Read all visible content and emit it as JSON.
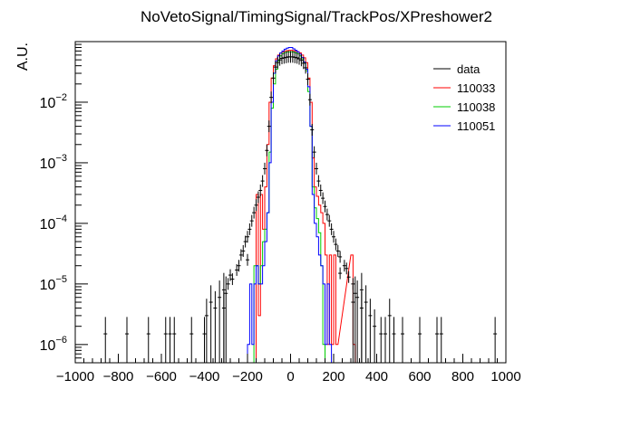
{
  "chart_data": {
    "type": "histogram",
    "title": "NoVetoSignal/TimingSignal/TrackPos/XPreshower2",
    "ylabel": "A.U.",
    "xlabel": "",
    "xlim": [
      -1000,
      1000
    ],
    "ylim": [
      5e-07,
      0.1
    ],
    "yscale": "log",
    "xticks": [
      "−1000",
      "−800",
      "−600",
      "−400",
      "−200",
      "0",
      "200",
      "400",
      "600",
      "800",
      "1000"
    ],
    "yticks": [
      {
        "base": "10",
        "exp": "−6",
        "value": 1e-06
      },
      {
        "base": "10",
        "exp": "−5",
        "value": 1e-05
      },
      {
        "base": "10",
        "exp": "−4",
        "value": 0.0001
      },
      {
        "base": "10",
        "exp": "−3",
        "value": 0.001
      },
      {
        "base": "10",
        "exp": "−2",
        "value": 0.01
      }
    ],
    "legend_position": "top-right",
    "data": {
      "name": "data",
      "color": "#000000",
      "points": [
        [
          -860,
          1.5e-06
        ],
        [
          -760,
          1.5e-06
        ],
        [
          -660,
          1.5e-06
        ],
        [
          -580,
          1.5e-06
        ],
        [
          -560,
          1.5e-06
        ],
        [
          -540,
          1.5e-06
        ],
        [
          -460,
          1.5e-06
        ],
        [
          -400,
          1.5e-06
        ],
        [
          -390,
          3e-06
        ],
        [
          -370,
          5e-06
        ],
        [
          -350,
          4e-06
        ],
        [
          -330,
          6e-06
        ],
        [
          -310,
          8e-06
        ],
        [
          -290,
          1e-05
        ],
        [
          -280,
          1.4e-05
        ],
        [
          -270,
          1.2e-05
        ],
        [
          -250,
          1.7e-05
        ],
        [
          -240,
          2e-05
        ],
        [
          -230,
          3e-05
        ],
        [
          -220,
          3.5e-05
        ],
        [
          -210,
          5e-05
        ],
        [
          -200,
          6e-05
        ],
        [
          -190,
          8e-05
        ],
        [
          -180,
          0.00011
        ],
        [
          -170,
          0.00015
        ],
        [
          -160,
          0.0002
        ],
        [
          -150,
          0.00027
        ],
        [
          -140,
          0.00035
        ],
        [
          -130,
          0.0005
        ],
        [
          -120,
          0.0008
        ],
        [
          -110,
          0.0016
        ],
        [
          -100,
          0.004
        ],
        [
          -90,
          0.012
        ],
        [
          -80,
          0.025
        ],
        [
          -70,
          0.038
        ],
        [
          -60,
          0.045
        ],
        [
          -50,
          0.05
        ],
        [
          -40,
          0.053
        ],
        [
          -30,
          0.054
        ],
        [
          -20,
          0.055
        ],
        [
          -10,
          0.056
        ],
        [
          0,
          0.056
        ],
        [
          10,
          0.056
        ],
        [
          20,
          0.055
        ],
        [
          30,
          0.054
        ],
        [
          40,
          0.052
        ],
        [
          50,
          0.049
        ],
        [
          60,
          0.044
        ],
        [
          70,
          0.037
        ],
        [
          80,
          0.024
        ],
        [
          90,
          0.011
        ],
        [
          100,
          0.0035
        ],
        [
          110,
          0.0015
        ],
        [
          120,
          0.0008
        ],
        [
          130,
          0.0005
        ],
        [
          140,
          0.00035
        ],
        [
          150,
          0.00026
        ],
        [
          160,
          0.00019
        ],
        [
          170,
          0.00014
        ],
        [
          180,
          0.00011
        ],
        [
          190,
          8e-05
        ],
        [
          200,
          6e-05
        ],
        [
          210,
          4.5e-05
        ],
        [
          220,
          3.5e-05
        ],
        [
          230,
          2.8e-05
        ],
        [
          250,
          2e-05
        ],
        [
          260,
          1.8e-05
        ],
        [
          270,
          1.3e-05
        ],
        [
          290,
          1e-05
        ],
        [
          300,
          7e-06
        ],
        [
          310,
          6e-06
        ],
        [
          330,
          4e-06
        ],
        [
          350,
          5e-06
        ],
        [
          370,
          3e-06
        ],
        [
          390,
          2e-06
        ],
        [
          420,
          1.5e-06
        ],
        [
          440,
          1.5e-06
        ],
        [
          460,
          3e-06
        ],
        [
          480,
          1.5e-06
        ],
        [
          520,
          1.5e-06
        ],
        [
          600,
          1.5e-06
        ],
        [
          680,
          1.5e-06
        ],
        [
          700,
          1.5e-06
        ],
        [
          950,
          1.5e-06
        ],
        [
          -300,
          7e-06
        ],
        [
          -200,
          2.5e-05
        ],
        [
          230,
          1.5e-05
        ],
        [
          290,
          5e-06
        ],
        [
          -310,
          4e-06
        ],
        [
          330,
          8e-06
        ]
      ]
    },
    "series": [
      {
        "name": "110033",
        "color": "#ff0000",
        "bins": [
          [
            -160,
            -150,
            0.0003
          ],
          [
            -150,
            -140,
            3e-06
          ],
          [
            -140,
            -130,
            0.0003
          ],
          [
            -130,
            -120,
            8e-05
          ],
          [
            -120,
            -110,
            0.0004
          ],
          [
            -110,
            -100,
            0.002
          ],
          [
            -100,
            -90,
            0.01
          ],
          [
            -90,
            -80,
            0.025
          ],
          [
            -80,
            -70,
            0.04
          ],
          [
            -70,
            -60,
            0.052
          ],
          [
            -60,
            -50,
            0.06
          ],
          [
            -50,
            -40,
            0.065
          ],
          [
            -40,
            -30,
            0.068
          ],
          [
            -30,
            -20,
            0.07
          ],
          [
            -20,
            -10,
            0.071
          ],
          [
            -10,
            0,
            0.072
          ],
          [
            0,
            10,
            0.072
          ],
          [
            10,
            20,
            0.071
          ],
          [
            20,
            30,
            0.07
          ],
          [
            30,
            40,
            0.068
          ],
          [
            40,
            50,
            0.065
          ],
          [
            50,
            60,
            0.06
          ],
          [
            60,
            70,
            0.054
          ],
          [
            70,
            80,
            0.045
          ],
          [
            80,
            90,
            0.025
          ],
          [
            90,
            100,
            0.01
          ],
          [
            100,
            110,
            0.0012
          ],
          [
            110,
            120,
            0.0004
          ],
          [
            120,
            130,
            0.00028
          ],
          [
            130,
            140,
            0.0002
          ],
          [
            140,
            150,
            0.00015
          ],
          [
            150,
            160,
            0.0001
          ],
          [
            160,
            170,
            3e-05
          ],
          [
            170,
            180,
            1e-06
          ],
          [
            180,
            190,
            3e-05
          ],
          [
            190,
            200,
            1e-06
          ],
          [
            200,
            210,
            3e-05
          ],
          [
            210,
            220,
            1e-06
          ],
          [
            280,
            290,
            3e-05
          ],
          [
            290,
            300,
            1e-06
          ]
        ]
      },
      {
        "name": "110038",
        "color": "#00cc00",
        "bins": [
          [
            -170,
            -160,
            2e-05
          ],
          [
            -160,
            -150,
            2e-05
          ],
          [
            -150,
            -140,
            1e-05
          ],
          [
            -140,
            -130,
            2e-05
          ],
          [
            -130,
            -120,
            5e-05
          ],
          [
            -120,
            -110,
            8e-05
          ],
          [
            -110,
            -100,
            0.00015
          ],
          [
            -100,
            -90,
            0.0015
          ],
          [
            -90,
            -80,
            0.008
          ],
          [
            -80,
            -70,
            0.02
          ],
          [
            -70,
            -60,
            0.035
          ],
          [
            -60,
            -50,
            0.048
          ],
          [
            -50,
            -40,
            0.058
          ],
          [
            -40,
            -30,
            0.063
          ],
          [
            -30,
            -20,
            0.066
          ],
          [
            -20,
            -10,
            0.068
          ],
          [
            -10,
            0,
            0.068
          ],
          [
            0,
            10,
            0.068
          ],
          [
            10,
            20,
            0.067
          ],
          [
            20,
            30,
            0.065
          ],
          [
            30,
            40,
            0.063
          ],
          [
            40,
            50,
            0.058
          ],
          [
            50,
            60,
            0.052
          ],
          [
            60,
            70,
            0.044
          ],
          [
            70,
            80,
            0.033
          ],
          [
            80,
            90,
            0.015
          ],
          [
            90,
            100,
            0.004
          ],
          [
            100,
            110,
            0.0004
          ],
          [
            110,
            120,
            0.00018
          ],
          [
            120,
            130,
            0.00012
          ],
          [
            130,
            140,
            7e-05
          ],
          [
            140,
            150,
            2e-05
          ],
          [
            150,
            160,
            1e-06
          ]
        ]
      },
      {
        "name": "110051",
        "color": "#0000ff",
        "bins": [
          [
            -200,
            -190,
            1e-06
          ],
          [
            -190,
            -180,
            1e-05
          ],
          [
            -180,
            -170,
            1e-06
          ],
          [
            -170,
            -160,
            1e-05
          ],
          [
            -160,
            -150,
            2e-05
          ],
          [
            -150,
            -140,
            1e-05
          ],
          [
            -140,
            -130,
            1e-05
          ],
          [
            -130,
            -120,
            2e-05
          ],
          [
            -120,
            -110,
            5e-05
          ],
          [
            -110,
            -100,
            0.00015
          ],
          [
            -100,
            -90,
            0.001
          ],
          [
            -90,
            -80,
            0.01
          ],
          [
            -80,
            -70,
            0.03
          ],
          [
            -70,
            -60,
            0.048
          ],
          [
            -60,
            -50,
            0.058
          ],
          [
            -50,
            -40,
            0.065
          ],
          [
            -40,
            -30,
            0.07
          ],
          [
            -30,
            -20,
            0.075
          ],
          [
            -20,
            -10,
            0.078
          ],
          [
            -10,
            0,
            0.08
          ],
          [
            0,
            10,
            0.08
          ],
          [
            10,
            20,
            0.076
          ],
          [
            20,
            30,
            0.072
          ],
          [
            30,
            40,
            0.068
          ],
          [
            40,
            50,
            0.062
          ],
          [
            50,
            60,
            0.055
          ],
          [
            60,
            70,
            0.046
          ],
          [
            70,
            80,
            0.035
          ],
          [
            80,
            90,
            0.018
          ],
          [
            90,
            100,
            0.004
          ],
          [
            100,
            110,
            0.0003
          ],
          [
            110,
            120,
            0.0001
          ],
          [
            120,
            130,
            6e-05
          ],
          [
            130,
            140,
            3e-05
          ],
          [
            140,
            150,
            2e-05
          ],
          [
            150,
            160,
            1e-05
          ],
          [
            160,
            170,
            1e-06
          ],
          [
            170,
            180,
            1e-05
          ],
          [
            180,
            190,
            1e-06
          ]
        ]
      }
    ]
  }
}
